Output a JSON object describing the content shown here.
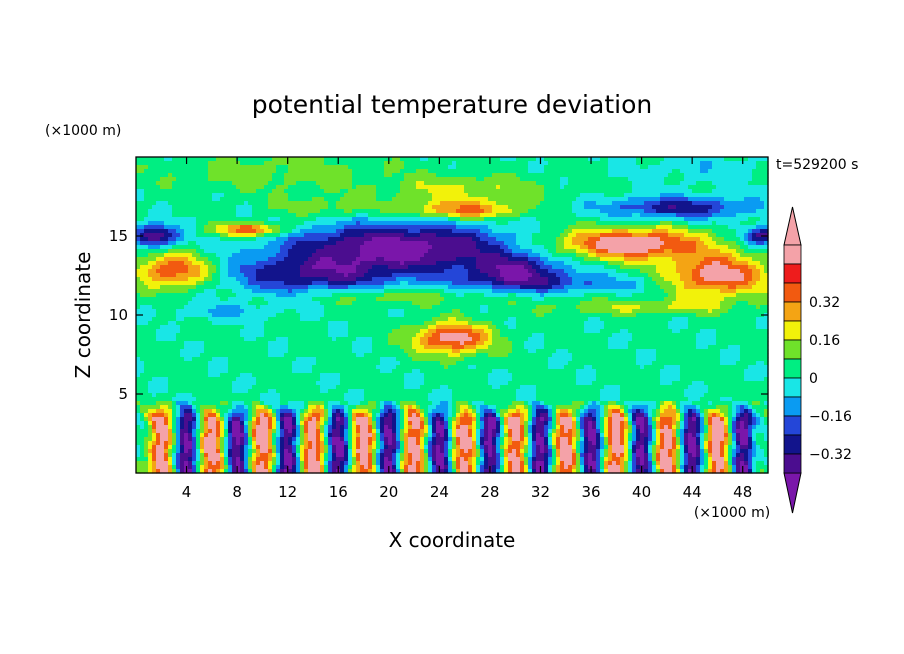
{
  "chart_data": {
    "type": "heatmap",
    "title": "potential temperature deviation",
    "xlabel": "X coordinate",
    "ylabel": "Z coordinate",
    "x_unit": "(×1000 m)",
    "y_unit": "(×1000 m)",
    "time_label": "t=529200 s",
    "xlim": [
      0,
      50
    ],
    "ylim": [
      0,
      20
    ],
    "x_ticks": [
      4,
      8,
      12,
      16,
      20,
      24,
      28,
      32,
      36,
      40,
      44,
      48
    ],
    "x_tick_labels": [
      "4",
      "8",
      "12",
      "16",
      "20",
      "24",
      "28",
      "32",
      "36",
      "40",
      "44",
      "48"
    ],
    "y_ticks": [
      5,
      10,
      15
    ],
    "y_tick_labels": [
      "5",
      "10",
      "15"
    ],
    "colorbar": {
      "levels": [
        -0.4,
        -0.32,
        -0.24,
        -0.16,
        -0.08,
        0,
        0.08,
        0.16,
        0.24,
        0.32,
        0.4
      ],
      "colors": [
        "#4b0d8f",
        "#12148c",
        "#2446d8",
        "#0a9bf2",
        "#19e6e6",
        "#00ee82",
        "#6fe22a",
        "#f2f20a",
        "#f4a414",
        "#f25a10",
        "#ee1c1c",
        "#f4a2a8"
      ],
      "under_color": "#7a16aa",
      "over_color": "#f4a2a8",
      "tick_values": [
        -0.32,
        -0.16,
        0,
        0.16,
        0.32
      ],
      "tick_labels": [
        "−0.32",
        "−0.16",
        "0",
        "0.16",
        "0.32"
      ]
    },
    "background_level": 0.02,
    "features": [
      {
        "x": 11,
        "z": 19,
        "rx": 9,
        "rz": 1.2,
        "amp": 0.1
      },
      {
        "x": 45,
        "z": 19.2,
        "rx": 6,
        "rz": 1.0,
        "amp": -0.07
      },
      {
        "x": 26,
        "z": 17.8,
        "rx": 6,
        "rz": 1.0,
        "amp": 0.16
      },
      {
        "x": 26,
        "z": 16.6,
        "rx": 4.5,
        "rz": 0.55,
        "amp": 0.3
      },
      {
        "x": 15,
        "z": 16.8,
        "rx": 4,
        "rz": 0.7,
        "amp": 0.12
      },
      {
        "x": 9,
        "z": 15.4,
        "rx": 2.8,
        "rz": 0.45,
        "amp": 0.38
      },
      {
        "x": 1.5,
        "z": 15.0,
        "rx": 1.8,
        "rz": 0.7,
        "amp": -0.45
      },
      {
        "x": 43,
        "z": 16.8,
        "rx": 6,
        "rz": 0.7,
        "amp": -0.32
      },
      {
        "x": 49.5,
        "z": 15.0,
        "rx": 1.5,
        "rz": 0.6,
        "amp": -0.4
      },
      {
        "x": 21,
        "z": 14.3,
        "rx": 9,
        "rz": 1.5,
        "amp": -0.48
      },
      {
        "x": 14,
        "z": 12.5,
        "rx": 7,
        "rz": 1.2,
        "amp": -0.32
      },
      {
        "x": 30,
        "z": 12.8,
        "rx": 4,
        "rz": 1.0,
        "amp": -0.35
      },
      {
        "x": 33,
        "z": 12.0,
        "rx": 8,
        "rz": 0.6,
        "amp": -0.18
      },
      {
        "x": 39,
        "z": 14.5,
        "rx": 6,
        "rz": 1.0,
        "amp": 0.48
      },
      {
        "x": 46,
        "z": 12.5,
        "rx": 4,
        "rz": 1.3,
        "amp": 0.45
      },
      {
        "x": 3,
        "z": 12.8,
        "rx": 3,
        "rz": 1.1,
        "amp": 0.4
      },
      {
        "x": 25,
        "z": 8.5,
        "rx": 3,
        "rz": 1.0,
        "amp": 0.45
      },
      {
        "x": 40,
        "z": 10.5,
        "rx": 8,
        "rz": 0.5,
        "amp": 0.14
      },
      {
        "x": 7,
        "z": 10.2,
        "rx": 4,
        "rz": 0.5,
        "amp": -0.12
      },
      {
        "x": 20,
        "z": 11.2,
        "rx": 6,
        "rz": 0.6,
        "amp": 0.15
      }
    ],
    "surface_layer": {
      "z_top": 4.6,
      "warm_columns_x": [
        2,
        6,
        10,
        14,
        18,
        22,
        26,
        30,
        34,
        38,
        42,
        46
      ],
      "cold_columns_x": [
        4,
        8,
        12,
        16,
        20,
        24,
        28,
        32,
        36,
        40,
        44,
        48
      ],
      "amplitude": 0.45
    }
  }
}
